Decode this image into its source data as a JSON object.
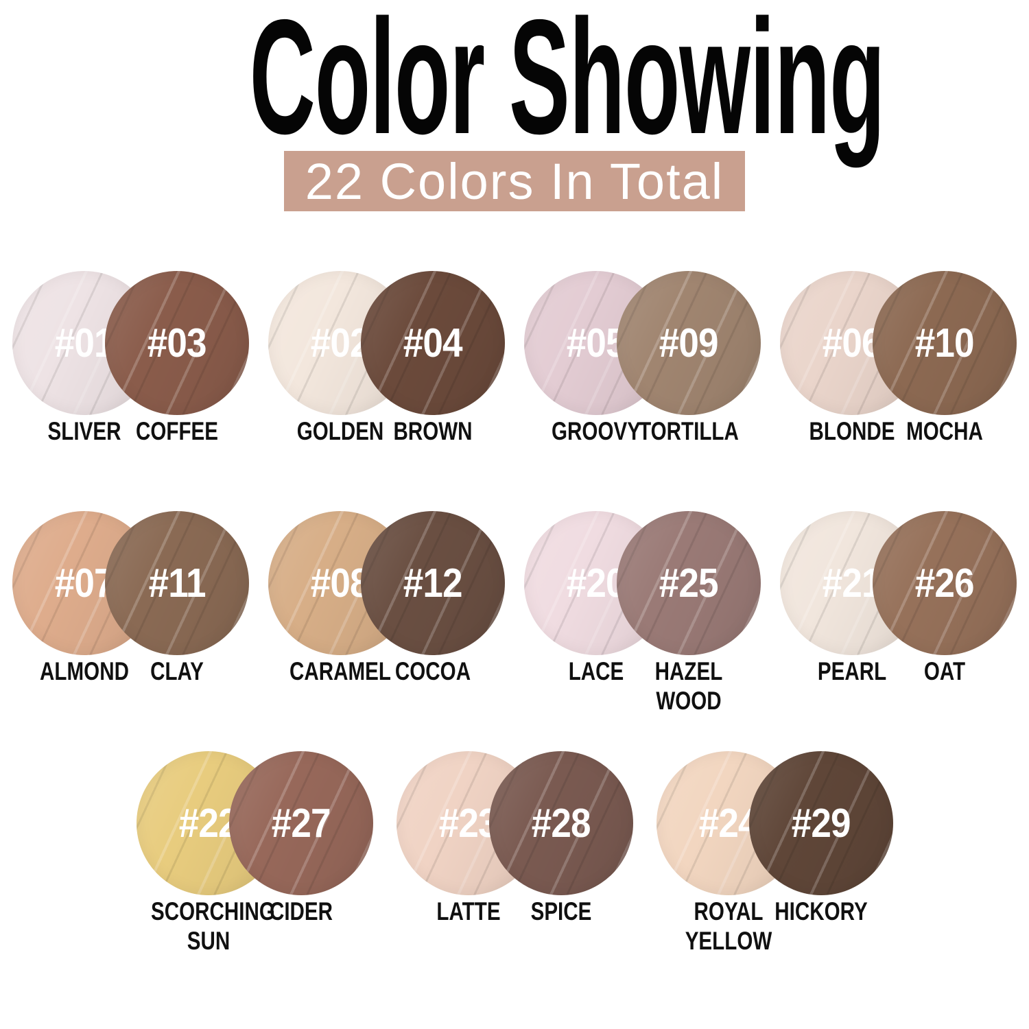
{
  "title": "Color Showing",
  "subtitle": "22 Colors In Total",
  "total_colors": 22,
  "theme": {
    "background": "#ffffff",
    "title_color": "#050505",
    "subtitle_bg": "#c9a08f",
    "subtitle_text": "#ffffff",
    "shade_number_color": "#ffffff",
    "shade_name_color": "#101010"
  },
  "rows": [
    [
      {
        "light": {
          "number": "#01",
          "name": "SLIVER",
          "color": "#eee3e5"
        },
        "dark": {
          "number": "#03",
          "name": "COFFEE",
          "color": "#8a5c4b"
        }
      },
      {
        "light": {
          "number": "#02",
          "name": "GOLDEN",
          "color": "#f3e7dd"
        },
        "dark": {
          "number": "#04",
          "name": "BROWN",
          "color": "#6b4a3b"
        }
      },
      {
        "light": {
          "number": "#05",
          "name": "GROOVY",
          "color": "#e3ccd3"
        },
        "dark": {
          "number": "#09",
          "name": "TORTILLA",
          "color": "#a08570"
        }
      },
      {
        "light": {
          "number": "#06",
          "name": "BLONDE",
          "color": "#ead5cb"
        },
        "dark": {
          "number": "#10",
          "name": "MOCHA",
          "color": "#8c6952"
        }
      }
    ],
    [
      {
        "light": {
          "number": "#07",
          "name": "ALMOND",
          "color": "#deac8c"
        },
        "dark": {
          "number": "#11",
          "name": "CLAY",
          "color": "#8a6a54"
        }
      },
      {
        "light": {
          "number": "#08",
          "name": "CARAMEL",
          "color": "#d7ae87"
        },
        "dark": {
          "number": "#12",
          "name": "COCOA",
          "color": "#6a4f42"
        }
      },
      {
        "light": {
          "number": "#20",
          "name": "LACE",
          "color": "#f0dce1"
        },
        "dark": {
          "number": "#25",
          "name": "HAZEL\nWOOD",
          "color": "#9a7a76"
        }
      },
      {
        "light": {
          "number": "#21",
          "name": "PEARL",
          "color": "#f1e6dd"
        },
        "dark": {
          "number": "#26",
          "name": "OAT",
          "color": "#96715a"
        }
      }
    ],
    [
      {
        "light": {
          "number": "#22",
          "name": "SCORCHING\nSUN",
          "color": "#e8cc7e"
        },
        "dark": {
          "number": "#27",
          "name": "CIDER",
          "color": "#97685a"
        }
      },
      {
        "light": {
          "number": "#23",
          "name": "LATTE",
          "color": "#f0d3c4"
        },
        "dark": {
          "number": "#28",
          "name": "SPICE",
          "color": "#7a5a51"
        }
      },
      {
        "light": {
          "number": "#24",
          "name": "ROYAL\nYELLOW",
          "color": "#f2d6c0"
        },
        "dark": {
          "number": "#29",
          "name": "HICKORY",
          "color": "#5f4638"
        }
      }
    ]
  ]
}
